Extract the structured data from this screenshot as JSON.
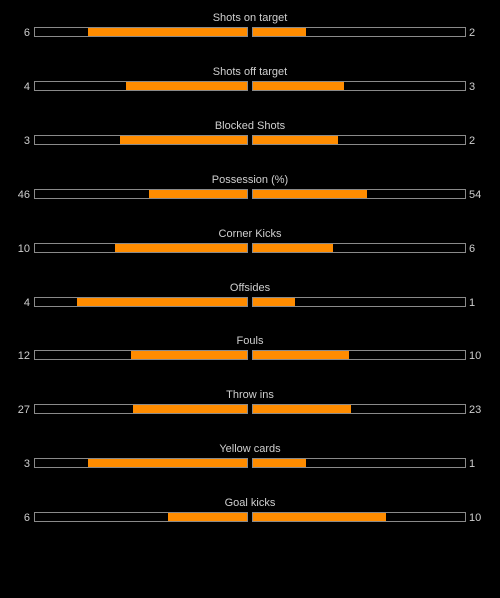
{
  "colors": {
    "accent": "#ff8c00",
    "background": "#000000",
    "text": "#d0d0d0",
    "track_border": "#8a8a8a"
  },
  "stats": [
    {
      "label": "Shots on target",
      "home": "6",
      "away": "2"
    },
    {
      "label": "Shots off target",
      "home": "4",
      "away": "3"
    },
    {
      "label": "Blocked Shots",
      "home": "3",
      "away": "2"
    },
    {
      "label": "Possession (%)",
      "home": "46",
      "away": "54"
    },
    {
      "label": "Corner Kicks",
      "home": "10",
      "away": "6"
    },
    {
      "label": "Offsides",
      "home": "4",
      "away": "1"
    },
    {
      "label": "Fouls",
      "home": "12",
      "away": "10"
    },
    {
      "label": "Throw ins",
      "home": "27",
      "away": "23"
    },
    {
      "label": "Yellow cards",
      "home": "3",
      "away": "1"
    },
    {
      "label": "Goal kicks",
      "home": "6",
      "away": "10"
    }
  ]
}
